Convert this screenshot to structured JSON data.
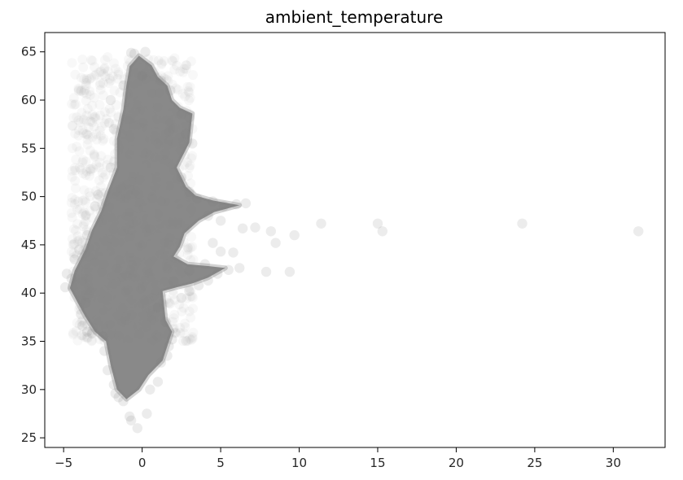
{
  "chart_data": {
    "type": "scatter",
    "title": "ambient_temperature",
    "xlabel": "",
    "ylabel": "",
    "xlim": [
      -6.2,
      33.3
    ],
    "ylim": [
      24.0,
      67.0
    ],
    "xticks": [
      -5,
      0,
      5,
      10,
      15,
      20,
      25,
      30
    ],
    "yticks": [
      25,
      30,
      35,
      40,
      45,
      50,
      55,
      60,
      65
    ],
    "grid": false,
    "legend": "none",
    "marker_color": "#808080",
    "marker_alpha": 0.15,
    "series": [
      {
        "points": [
          [
            -0.5,
            64.8
          ],
          [
            -0.7,
            64.9
          ],
          [
            0.2,
            65.0
          ],
          [
            0.0,
            62.5
          ],
          [
            -1.2,
            61.5
          ],
          [
            1.2,
            62.0
          ],
          [
            1.8,
            61.0
          ],
          [
            -2.0,
            60.0
          ],
          [
            2.5,
            58.5
          ],
          [
            3.0,
            58.2
          ],
          [
            -1.8,
            57.0
          ],
          [
            2.8,
            56.5
          ],
          [
            3.2,
            55.5
          ],
          [
            -2.0,
            53.0
          ],
          [
            2.5,
            52.0
          ],
          [
            3.0,
            50.5
          ],
          [
            -2.8,
            50.2
          ],
          [
            -3.0,
            49.0
          ],
          [
            3.5,
            49.8
          ],
          [
            4.5,
            49.5
          ],
          [
            5.2,
            49.0
          ],
          [
            6.0,
            49.2
          ],
          [
            6.6,
            49.3
          ],
          [
            4.2,
            48.0
          ],
          [
            5.0,
            47.5
          ],
          [
            -3.5,
            46.0
          ],
          [
            -4.0,
            44.5
          ],
          [
            -4.3,
            43.5
          ],
          [
            -4.8,
            42.0
          ],
          [
            -4.9,
            40.6
          ],
          [
            -4.5,
            41.5
          ],
          [
            -3.6,
            39.0
          ],
          [
            -3.9,
            37.8
          ],
          [
            -3.8,
            36.6
          ],
          [
            -3.5,
            36.0
          ],
          [
            -3.2,
            35.8
          ],
          [
            -2.5,
            35.5
          ],
          [
            -2.4,
            34.0
          ],
          [
            -2.2,
            32.0
          ],
          [
            -1.8,
            30.5
          ],
          [
            -1.7,
            29.6
          ],
          [
            -1.5,
            29.2
          ],
          [
            -1.2,
            28.8
          ],
          [
            -0.8,
            27.2
          ],
          [
            -0.7,
            26.8
          ],
          [
            -0.3,
            26.0
          ],
          [
            0.3,
            27.5
          ],
          [
            0.5,
            30.0
          ],
          [
            1.0,
            30.8
          ],
          [
            1.2,
            32.8
          ],
          [
            1.6,
            33.5
          ],
          [
            1.7,
            34.5
          ],
          [
            1.9,
            35.2
          ],
          [
            1.5,
            37.0
          ],
          [
            1.0,
            38.5
          ],
          [
            2.5,
            39.5
          ],
          [
            3.0,
            40.2
          ],
          [
            3.6,
            40.8
          ],
          [
            4.2,
            41.3
          ],
          [
            4.8,
            42.0
          ],
          [
            5.5,
            42.4
          ],
          [
            6.2,
            42.6
          ],
          [
            2.0,
            41.2
          ],
          [
            3.0,
            42.3
          ],
          [
            4.0,
            43.0
          ],
          [
            5.0,
            44.3
          ],
          [
            5.8,
            44.2
          ],
          [
            4.5,
            45.2
          ],
          [
            7.2,
            46.8
          ],
          [
            6.4,
            46.7
          ],
          [
            8.2,
            46.4
          ],
          [
            8.5,
            45.2
          ],
          [
            7.9,
            42.2
          ],
          [
            9.4,
            42.2
          ],
          [
            9.7,
            46.0
          ],
          [
            11.4,
            47.2
          ],
          [
            15.0,
            47.2
          ],
          [
            15.3,
            46.4
          ],
          [
            24.2,
            47.2
          ],
          [
            31.6,
            46.4
          ]
        ]
      }
    ]
  }
}
